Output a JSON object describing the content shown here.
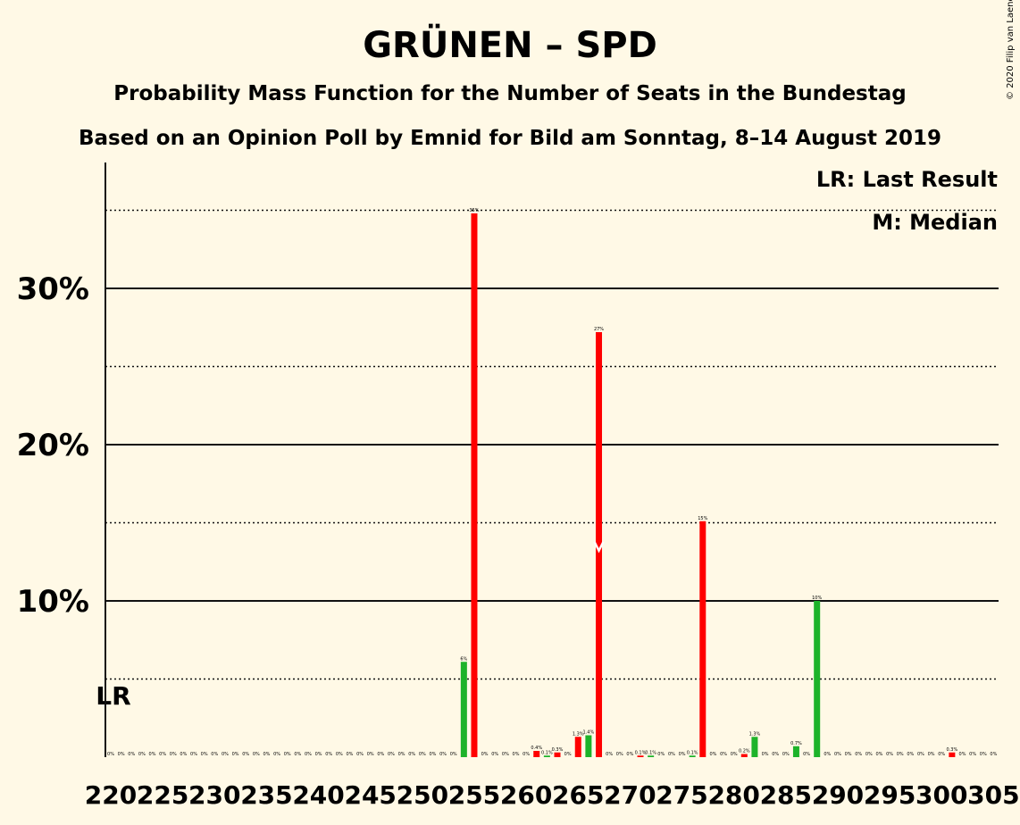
{
  "title": "GRÜNEN – SPD",
  "subtitle1": "Probability Mass Function for the Number of Seats in the Bundestag",
  "subtitle2": "Based on an Opinion Poll by Emnid for Bild am Sonntag, 8–14 August 2019",
  "copyright": "© 2020 Filip van Laenen",
  "legend": {
    "lr": "LR: Last Result",
    "median": "M: Median"
  },
  "lr_marker": "LR",
  "median_marker": "M",
  "colors": {
    "background": "#FFF9E6",
    "red": "#FF0000",
    "green": "#1DB32A"
  },
  "chart_data": {
    "type": "bar",
    "xlabel": "",
    "ylabel": "",
    "ylim": [
      0,
      38
    ],
    "y_ticks": [
      {
        "value": 10,
        "label": "10%"
      },
      {
        "value": 20,
        "label": "20%"
      },
      {
        "value": 30,
        "label": "30%"
      }
    ],
    "y_dotted": [
      5,
      15,
      25,
      35
    ],
    "x_ticks": [
      {
        "value": 220,
        "label": "220"
      },
      {
        "value": 225,
        "label": "225"
      },
      {
        "value": 230,
        "label": "230"
      },
      {
        "value": 235,
        "label": "235"
      },
      {
        "value": 240,
        "label": "240"
      },
      {
        "value": 245,
        "label": "245"
      },
      {
        "value": 250,
        "label": "250"
      },
      {
        "value": 255,
        "label": "255"
      },
      {
        "value": 260,
        "label": "260"
      },
      {
        "value": 265,
        "label": "265"
      },
      {
        "value": 270,
        "label": "270"
      },
      {
        "value": 275,
        "label": "275"
      },
      {
        "value": 280,
        "label": "280"
      },
      {
        "value": 285,
        "label": "285"
      },
      {
        "value": 290,
        "label": "290"
      },
      {
        "value": 295,
        "label": "295"
      },
      {
        "value": 300,
        "label": "300"
      },
      {
        "value": 305,
        "label": "305"
      }
    ],
    "last_result_seat": 220,
    "median_seat": 267,
    "bars": [
      {
        "seat": 220,
        "party": "green",
        "value": 0,
        "label": "0%"
      },
      {
        "seat": 221,
        "party": "red",
        "value": 0,
        "label": "0%"
      },
      {
        "seat": 222,
        "party": "green",
        "value": 0,
        "label": "0%"
      },
      {
        "seat": 223,
        "party": "red",
        "value": 0,
        "label": "0%"
      },
      {
        "seat": 224,
        "party": "green",
        "value": 0,
        "label": "0%"
      },
      {
        "seat": 225,
        "party": "red",
        "value": 0,
        "label": "0%"
      },
      {
        "seat": 226,
        "party": "green",
        "value": 0,
        "label": "0%"
      },
      {
        "seat": 227,
        "party": "red",
        "value": 0,
        "label": "0%"
      },
      {
        "seat": 228,
        "party": "green",
        "value": 0,
        "label": "0%"
      },
      {
        "seat": 229,
        "party": "red",
        "value": 0,
        "label": "0%"
      },
      {
        "seat": 230,
        "party": "green",
        "value": 0,
        "label": "0%"
      },
      {
        "seat": 231,
        "party": "red",
        "value": 0,
        "label": "0%"
      },
      {
        "seat": 232,
        "party": "green",
        "value": 0,
        "label": "0%"
      },
      {
        "seat": 233,
        "party": "red",
        "value": 0,
        "label": "0%"
      },
      {
        "seat": 234,
        "party": "green",
        "value": 0,
        "label": "0%"
      },
      {
        "seat": 235,
        "party": "red",
        "value": 0,
        "label": "0%"
      },
      {
        "seat": 236,
        "party": "green",
        "value": 0,
        "label": "0%"
      },
      {
        "seat": 237,
        "party": "red",
        "value": 0,
        "label": "0%"
      },
      {
        "seat": 238,
        "party": "green",
        "value": 0,
        "label": "0%"
      },
      {
        "seat": 239,
        "party": "red",
        "value": 0,
        "label": "0%"
      },
      {
        "seat": 240,
        "party": "green",
        "value": 0,
        "label": "0%"
      },
      {
        "seat": 241,
        "party": "red",
        "value": 0,
        "label": "0%"
      },
      {
        "seat": 242,
        "party": "green",
        "value": 0,
        "label": "0%"
      },
      {
        "seat": 243,
        "party": "red",
        "value": 0,
        "label": "0%"
      },
      {
        "seat": 244,
        "party": "green",
        "value": 0,
        "label": "0%"
      },
      {
        "seat": 245,
        "party": "red",
        "value": 0,
        "label": "0%"
      },
      {
        "seat": 246,
        "party": "green",
        "value": 0,
        "label": "0%"
      },
      {
        "seat": 247,
        "party": "red",
        "value": 0,
        "label": "0%"
      },
      {
        "seat": 248,
        "party": "green",
        "value": 0,
        "label": "0%"
      },
      {
        "seat": 249,
        "party": "red",
        "value": 0,
        "label": "0%"
      },
      {
        "seat": 250,
        "party": "green",
        "value": 0,
        "label": "0%"
      },
      {
        "seat": 251,
        "party": "red",
        "value": 0,
        "label": "0%"
      },
      {
        "seat": 252,
        "party": "green",
        "value": 0,
        "label": "0%"
      },
      {
        "seat": 253,
        "party": "red",
        "value": 0,
        "label": "0%"
      },
      {
        "seat": 254,
        "party": "green",
        "value": 6.1,
        "label": "6%"
      },
      {
        "seat": 255,
        "party": "red",
        "value": 34.8,
        "label": "35%"
      },
      {
        "seat": 256,
        "party": "green",
        "value": 0,
        "label": "0%"
      },
      {
        "seat": 257,
        "party": "red",
        "value": 0,
        "label": "0%"
      },
      {
        "seat": 258,
        "party": "green",
        "value": 0,
        "label": "0%"
      },
      {
        "seat": 259,
        "party": "red",
        "value": 0,
        "label": "0%"
      },
      {
        "seat": 260,
        "party": "green",
        "value": 0,
        "label": "0%"
      },
      {
        "seat": 261,
        "party": "red",
        "value": 0.4,
        "label": "0.4%"
      },
      {
        "seat": 262,
        "party": "green",
        "value": 0.1,
        "label": "0.1%"
      },
      {
        "seat": 263,
        "party": "red",
        "value": 0.3,
        "label": "0.3%"
      },
      {
        "seat": 264,
        "party": "green",
        "value": 0,
        "label": "0%"
      },
      {
        "seat": 265,
        "party": "red",
        "value": 1.3,
        "label": "1.3%"
      },
      {
        "seat": 266,
        "party": "green",
        "value": 1.4,
        "label": "1.4%"
      },
      {
        "seat": 267,
        "party": "red",
        "value": 27.2,
        "label": "27%"
      },
      {
        "seat": 268,
        "party": "green",
        "value": 0,
        "label": "0%"
      },
      {
        "seat": 269,
        "party": "red",
        "value": 0,
        "label": "0%"
      },
      {
        "seat": 270,
        "party": "green",
        "value": 0,
        "label": "0%"
      },
      {
        "seat": 271,
        "party": "red",
        "value": 0.1,
        "label": "0.1%"
      },
      {
        "seat": 272,
        "party": "green",
        "value": 0.1,
        "label": "0.1%"
      },
      {
        "seat": 273,
        "party": "red",
        "value": 0,
        "label": "0%"
      },
      {
        "seat": 274,
        "party": "green",
        "value": 0,
        "label": "0%"
      },
      {
        "seat": 275,
        "party": "red",
        "value": 0,
        "label": "0%"
      },
      {
        "seat": 276,
        "party": "green",
        "value": 0.1,
        "label": "0.1%"
      },
      {
        "seat": 277,
        "party": "red",
        "value": 15.1,
        "label": "15%"
      },
      {
        "seat": 278,
        "party": "green",
        "value": 0,
        "label": "0%"
      },
      {
        "seat": 279,
        "party": "red",
        "value": 0,
        "label": "0%"
      },
      {
        "seat": 280,
        "party": "green",
        "value": 0,
        "label": "0%"
      },
      {
        "seat": 281,
        "party": "red",
        "value": 0.2,
        "label": "0.2%"
      },
      {
        "seat": 282,
        "party": "green",
        "value": 1.3,
        "label": "1.3%"
      },
      {
        "seat": 283,
        "party": "red",
        "value": 0,
        "label": "0%"
      },
      {
        "seat": 284,
        "party": "green",
        "value": 0,
        "label": "0%"
      },
      {
        "seat": 285,
        "party": "red",
        "value": 0,
        "label": "0%"
      },
      {
        "seat": 286,
        "party": "green",
        "value": 0.7,
        "label": "0.7%"
      },
      {
        "seat": 287,
        "party": "red",
        "value": 0,
        "label": "0%"
      },
      {
        "seat": 288,
        "party": "green",
        "value": 10.0,
        "label": "10%"
      },
      {
        "seat": 289,
        "party": "red",
        "value": 0,
        "label": "0%"
      },
      {
        "seat": 290,
        "party": "green",
        "value": 0,
        "label": "0%"
      },
      {
        "seat": 291,
        "party": "red",
        "value": 0,
        "label": "0%"
      },
      {
        "seat": 292,
        "party": "green",
        "value": 0,
        "label": "0%"
      },
      {
        "seat": 293,
        "party": "red",
        "value": 0,
        "label": "0%"
      },
      {
        "seat": 294,
        "party": "green",
        "value": 0,
        "label": "0%"
      },
      {
        "seat": 295,
        "party": "red",
        "value": 0,
        "label": "0%"
      },
      {
        "seat": 296,
        "party": "green",
        "value": 0,
        "label": "0%"
      },
      {
        "seat": 297,
        "party": "red",
        "value": 0,
        "label": "0%"
      },
      {
        "seat": 298,
        "party": "green",
        "value": 0,
        "label": "0%"
      },
      {
        "seat": 299,
        "party": "red",
        "value": 0,
        "label": "0%"
      },
      {
        "seat": 300,
        "party": "green",
        "value": 0,
        "label": "0%"
      },
      {
        "seat": 301,
        "party": "red",
        "value": 0.3,
        "label": "0.3%"
      },
      {
        "seat": 302,
        "party": "green",
        "value": 0,
        "label": "0%"
      },
      {
        "seat": 303,
        "party": "red",
        "value": 0,
        "label": "0%"
      },
      {
        "seat": 304,
        "party": "green",
        "value": 0,
        "label": "0%"
      },
      {
        "seat": 305,
        "party": "red",
        "value": 0,
        "label": "0%"
      }
    ]
  }
}
